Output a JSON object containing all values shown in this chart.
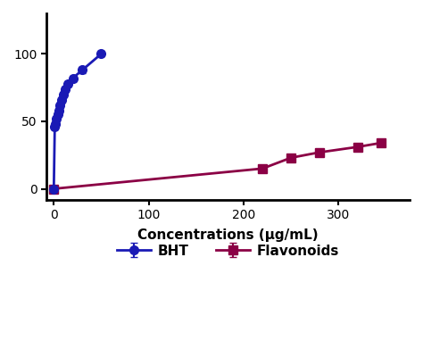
{
  "bht_x": [
    0,
    1,
    2,
    3,
    4,
    5,
    6,
    8,
    10,
    12,
    15,
    20,
    30,
    50
  ],
  "bht_y": [
    0,
    46,
    48,
    52,
    55,
    58,
    62,
    66,
    70,
    74,
    78,
    82,
    88,
    100
  ],
  "bht_yerr": [
    0.5,
    2.0,
    2.0,
    2.0,
    2.0,
    2.0,
    2.0,
    2.0,
    2.0,
    2.0,
    2.0,
    2.0,
    2.0,
    2.0
  ],
  "flav_x": [
    0,
    220,
    250,
    280,
    320,
    345
  ],
  "flav_y": [
    0,
    15,
    23,
    27,
    31,
    34
  ],
  "flav_yerr": [
    0.5,
    1.5,
    1.5,
    1.5,
    1.5,
    1.5
  ],
  "bht_color": "#1a1ab5",
  "flav_color": "#8b0045",
  "xlabel": "Concentrations (μg/mL)",
  "xlim": [
    -8,
    375
  ],
  "ylim": [
    -8,
    130
  ],
  "xticks": [
    0,
    100,
    200,
    300
  ],
  "yticks": [
    0,
    50,
    100
  ],
  "legend_bht": "BHT",
  "legend_flav": "Flavonoids",
  "bg_color": "#ffffff"
}
